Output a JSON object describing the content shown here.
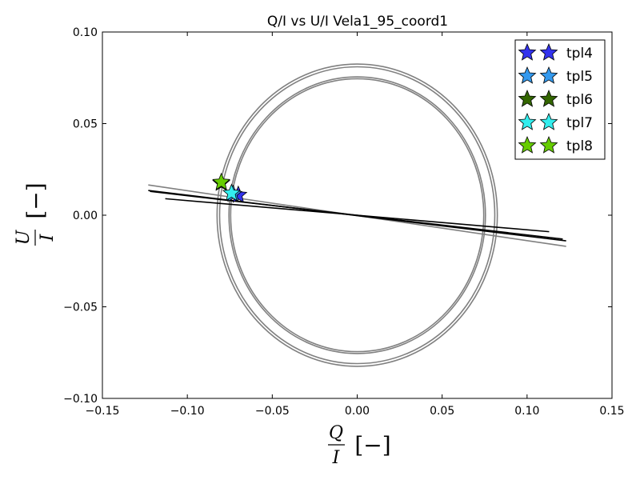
{
  "chart_data": {
    "type": "scatter",
    "title": "Q/I vs U/I Vela1_95_coord1",
    "xlabel": {
      "numerator": "Q",
      "denominator": "I",
      "unit": "[−]"
    },
    "ylabel": {
      "numerator": "U",
      "denominator": "I",
      "unit": "[−]"
    },
    "xlim": [
      -0.15,
      0.15
    ],
    "ylim": [
      -0.1,
      0.1
    ],
    "xticks": [
      -0.15,
      -0.1,
      -0.05,
      0.0,
      0.05,
      0.1,
      0.15
    ],
    "xtick_labels": [
      "−0.15",
      "−0.10",
      "−0.05",
      "0.00",
      "0.05",
      "0.10",
      "0.15"
    ],
    "yticks": [
      -0.1,
      -0.05,
      0.0,
      0.05,
      0.1
    ],
    "ytick_labels": [
      "−0.10",
      "−0.05",
      "0.00",
      "0.05",
      "0.10"
    ],
    "grid": false,
    "legend_position": "top-right",
    "ellipses": [
      {
        "cx": 0.0,
        "cy": 0.0,
        "rx": 0.0825,
        "ry": 0.0825,
        "color": "#808080"
      },
      {
        "cx": 0.0,
        "cy": 0.0,
        "rx": 0.081,
        "ry": 0.081,
        "color": "#808080"
      },
      {
        "cx": 0.0,
        "cy": 0.0,
        "rx": 0.0755,
        "ry": 0.0755,
        "color": "#808080"
      },
      {
        "cx": 0.0,
        "cy": 0.0,
        "rx": 0.0745,
        "ry": 0.0745,
        "color": "#808080"
      }
    ],
    "lines": [
      {
        "x": [
          -0.123,
          0.123
        ],
        "y": [
          0.0165,
          -0.017
        ],
        "color": "#808080"
      },
      {
        "x": [
          -0.123,
          0.123
        ],
        "y": [
          0.0135,
          -0.014
        ],
        "color": "#000000"
      },
      {
        "x": [
          -0.122,
          0.121
        ],
        "y": [
          0.013,
          -0.013
        ],
        "color": "#000000"
      },
      {
        "x": [
          -0.113,
          0.113
        ],
        "y": [
          0.009,
          -0.009
        ],
        "color": "#000000"
      }
    ],
    "series": [
      {
        "name": "tpl4",
        "color": "#3333ee",
        "points": [
          [
            -0.07,
            0.011
          ]
        ]
      },
      {
        "name": "tpl5",
        "color": "#3399ee",
        "points": [
          [
            -0.073,
            0.0115
          ]
        ]
      },
      {
        "name": "tpl6",
        "color": "#336600",
        "points": [
          [
            -0.08,
            0.0175
          ]
        ]
      },
      {
        "name": "tpl7",
        "color": "#33eeee",
        "points": [
          [
            -0.074,
            0.012
          ]
        ]
      },
      {
        "name": "tpl8",
        "color": "#66cc00",
        "points": [
          [
            -0.08,
            0.018
          ]
        ]
      }
    ]
  }
}
